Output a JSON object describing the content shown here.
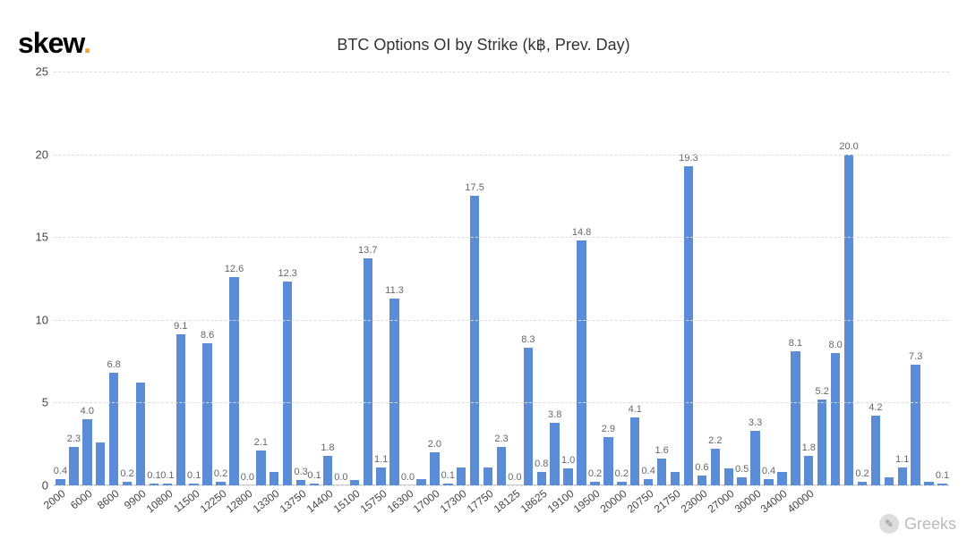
{
  "logo": {
    "text": "skew",
    "dot": "."
  },
  "chart": {
    "type": "bar",
    "title": "BTC Options OI by Strike (k฿, Prev. Day)",
    "title_fontsize": 18,
    "title_color": "#333333",
    "ylim": [
      0,
      25
    ],
    "yticks": [
      0,
      5,
      10,
      15,
      20,
      25
    ],
    "grid_color": "#dddddd",
    "grid_dash": true,
    "background_color": "#ffffff",
    "bar_color": "#5b8dd6",
    "bar_label_color": "#666666",
    "bar_label_fontsize": 11,
    "axis_label_color": "#444444",
    "axis_tick_fontsize": 13,
    "x_tick_fontsize": 12,
    "x_tick_rotation_deg": -38,
    "x_major_labels": [
      "2000",
      "6000",
      "8600",
      "9900",
      "10800",
      "11500",
      "12250",
      "12800",
      "13300",
      "13750",
      "14400",
      "15100",
      "15750",
      "16300",
      "17000",
      "17300",
      "17750",
      "18125",
      "18625",
      "19100",
      "19500",
      "20000",
      "20750",
      "21750",
      "23000",
      "27000",
      "30000",
      "34000",
      "40000"
    ],
    "x_major_step": 2,
    "values": [
      0.4,
      2.3,
      4.0,
      2.6,
      6.8,
      0.2,
      6.2,
      0.1,
      0.1,
      9.1,
      0.1,
      8.6,
      0.2,
      12.6,
      0.0,
      2.1,
      0.8,
      12.3,
      0.3,
      0.1,
      1.8,
      0.0,
      0.3,
      13.7,
      1.1,
      11.3,
      0.0,
      0.4,
      2.0,
      0.1,
      1.1,
      17.5,
      1.1,
      2.3,
      0.0,
      8.3,
      0.8,
      3.8,
      1.0,
      14.8,
      0.2,
      2.9,
      0.2,
      4.1,
      0.4,
      1.6,
      0.8,
      19.3,
      0.6,
      2.2,
      1.0,
      0.5,
      3.3,
      0.4,
      0.8,
      8.1,
      1.8,
      5.2,
      8.0,
      20.0,
      0.2,
      4.2,
      0.5,
      1.1,
      7.3,
      0.2,
      0.1
    ],
    "value_labels": [
      "0.4",
      "2.3",
      "4.0",
      "",
      "6.8",
      "0.2",
      "",
      "0.1",
      "0.1",
      "9.1",
      "0.1",
      "8.6",
      "0.2",
      "12.6",
      "0.0",
      "2.1",
      "",
      "12.3",
      "0.3",
      "0.1",
      "1.8",
      "0.0",
      "",
      "13.7",
      "1.1",
      "11.3",
      "0.0",
      "",
      "2.0",
      "0.1",
      "",
      "17.5",
      "",
      "2.3",
      "0.0",
      "8.3",
      "0.8",
      "3.8",
      "1.0",
      "14.8",
      "0.2",
      "2.9",
      "0.2",
      "4.1",
      "0.4",
      "1.6",
      "",
      "19.3",
      "0.6",
      "2.2",
      "",
      "0.5",
      "3.3",
      "0.4",
      "",
      "8.1",
      "1.8",
      "5.2",
      "8.0",
      "20.0",
      "0.2",
      "4.2",
      "",
      "1.1",
      "7.3",
      "",
      "0.1"
    ]
  },
  "watermark": {
    "text": "Greeks"
  }
}
